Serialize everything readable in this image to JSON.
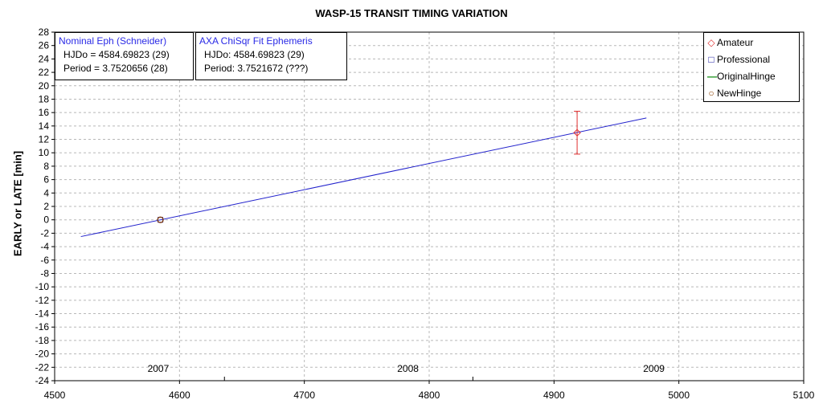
{
  "chart_data": {
    "type": "scatter",
    "title": "WASP-15 TRANSIT TIMING VARIATION",
    "xlabel": "",
    "ylabel": "EARLY or LATE [min]",
    "xlim": [
      4500,
      5100
    ],
    "ylim": [
      -24,
      28
    ],
    "xticks": [
      4500,
      4600,
      4700,
      4800,
      4900,
      5000,
      5100
    ],
    "yticks": [
      -24,
      -22,
      -20,
      -18,
      -16,
      -14,
      -12,
      -10,
      -8,
      -6,
      -4,
      -2,
      0,
      2,
      4,
      6,
      8,
      10,
      12,
      14,
      16,
      18,
      20,
      22,
      24,
      26,
      28
    ],
    "grid": true,
    "year_labels": [
      {
        "text": "2007",
        "x": 4583
      },
      {
        "text": "2008",
        "x": 4783
      },
      {
        "text": "2009",
        "x": 4980
      }
    ],
    "year_boundaries": [
      4636,
      4835
    ],
    "series": [
      {
        "name": "Amateur",
        "symbol": "diamond",
        "color": "#e03030",
        "points": [
          {
            "x": 4918.5,
            "y": 13.0,
            "err": 3.2
          }
        ]
      },
      {
        "name": "Professional",
        "symbol": "square",
        "color": "#1a1aa0",
        "points": [
          {
            "x": 4584.7,
            "y": 0.0
          }
        ]
      },
      {
        "name": "OriginalHinge",
        "symbol": "line",
        "color": "#0a8a0a",
        "points": []
      },
      {
        "name": "NewHinge",
        "symbol": "circle",
        "color": "#8a4000",
        "points": [
          {
            "x": 4584.7,
            "y": 0.0
          }
        ]
      }
    ],
    "fit_line": {
      "color": "#2222cc",
      "x": [
        4521,
        4974
      ],
      "y": [
        -2.5,
        15.2
      ]
    },
    "legend_position": "top-right"
  },
  "boxes": {
    "nominal": {
      "header": "Nominal Eph (Schneider)",
      "line1": "HJDo = 4584.69823 (29)",
      "line2": "Period = 3.7520656 (28)"
    },
    "fit": {
      "header": "AXA ChiSqr Fit Ephemeris",
      "line1": "HJDo:  4584.69823 (29)",
      "line2": "Period: 3.7521672 (???)"
    }
  },
  "legend": {
    "items": [
      {
        "label": "Amateur",
        "symbol": "◇",
        "color": "#e03030"
      },
      {
        "label": "Professional",
        "symbol": "□",
        "color": "#1a1aa0"
      },
      {
        "label": "OriginalHinge",
        "symbol": "—",
        "color": "#0a8a0a"
      },
      {
        "label": "NewHinge",
        "symbol": "○",
        "color": "#8a4000"
      }
    ]
  }
}
